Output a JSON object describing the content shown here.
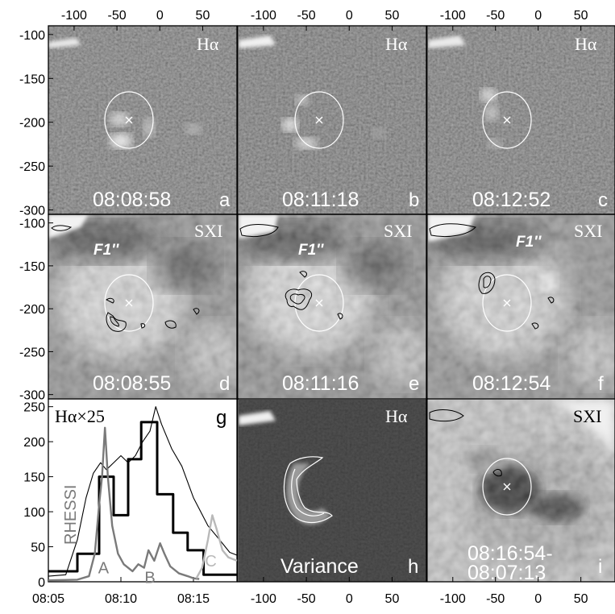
{
  "top_ticks": [
    "-100",
    "-50",
    "0",
    "50"
  ],
  "left_ticks": [
    "-100",
    "-150",
    "-200",
    "-250",
    "-300"
  ],
  "bottom_ticks": [
    "-100",
    "-50",
    "0",
    "50"
  ],
  "panels": {
    "a": {
      "type": "Hα",
      "time": "08:08:58",
      "letter": "a"
    },
    "b": {
      "type": "Hα",
      "time": "08:11:18",
      "letter": "b"
    },
    "c": {
      "type": "Hα",
      "time": "08:12:52",
      "letter": "c"
    },
    "d": {
      "type": "SXI",
      "time": "08:08:55",
      "letter": "d",
      "feature": "F1''"
    },
    "e": {
      "type": "SXI",
      "time": "08:11:16",
      "letter": "e",
      "feature": "F1''"
    },
    "f": {
      "type": "SXI",
      "time": "08:12:54",
      "letter": "f",
      "feature": "F1''"
    },
    "h": {
      "type": "Hα",
      "label": "Variance",
      "letter": "h"
    },
    "i": {
      "type": "SXI",
      "time1": "08:16:54-",
      "time2": "08:07:13",
      "letter": "i"
    }
  },
  "chart_data": {
    "type": "line",
    "panel_letter": "g",
    "x_unit": "UT",
    "x_ticks": [
      "08:05",
      "08:10",
      "08:15"
    ],
    "y_ticks": [
      "0",
      "50",
      "100",
      "150",
      "200",
      "250"
    ],
    "ylim": [
      0,
      260
    ],
    "xlim": [
      "08:05",
      "08:18"
    ],
    "ha_label": "Hα×25",
    "rhessi_label": "RHESSI",
    "peak_labels": [
      {
        "text": "A",
        "time": "08:08.8"
      },
      {
        "text": "B",
        "time": "08:12.0"
      },
      {
        "text": "C",
        "time": "08:16.2"
      }
    ],
    "series": [
      {
        "name": "Hα×25",
        "style": "thick step",
        "color": "#000000",
        "x": [
          5.0,
          6.0,
          7.0,
          8.5,
          9.5,
          10.5,
          11.4,
          12.5,
          13.6,
          14.6,
          15.7,
          18.0
        ],
        "y": [
          15,
          15,
          40,
          150,
          95,
          175,
          228,
          125,
          70,
          45,
          10,
          10
        ]
      },
      {
        "name": "SXI",
        "style": "thin line",
        "color": "#000000",
        "x": [
          5.0,
          6.2,
          7.0,
          7.6,
          8.1,
          8.6,
          9.0,
          9.5,
          10.0,
          10.5,
          11.0,
          11.5,
          12.0,
          12.4,
          12.8,
          13.5,
          14.2,
          15.0,
          16.0,
          16.8,
          17.5,
          18.0
        ],
        "y": [
          8,
          10,
          60,
          120,
          155,
          170,
          160,
          170,
          180,
          170,
          180,
          200,
          215,
          250,
          225,
          190,
          165,
          120,
          80,
          60,
          42,
          38
        ]
      },
      {
        "name": "RHESSI",
        "style": "medium line",
        "color": "#7a7a7a",
        "x": [
          5.0,
          7.0,
          7.8,
          8.2,
          8.5,
          8.7,
          8.9,
          9.1,
          9.4,
          9.8,
          10.2,
          10.8,
          11.2,
          11.6,
          11.9,
          12.3,
          12.7,
          13.0,
          13.4,
          14.0,
          14.6,
          15.0,
          15.4
        ],
        "y": [
          2,
          3,
          8,
          40,
          110,
          150,
          220,
          150,
          80,
          40,
          25,
          15,
          25,
          20,
          45,
          30,
          55,
          40,
          22,
          12,
          8,
          5,
          4
        ]
      },
      {
        "name": "RHESSI C",
        "style": "medium line",
        "color": "#b9b9b9",
        "x": [
          15.2,
          15.6,
          16.0,
          16.3,
          16.6,
          17.0,
          17.4,
          18.0
        ],
        "y": [
          5,
          20,
          60,
          95,
          75,
          45,
          35,
          30
        ]
      }
    ]
  }
}
